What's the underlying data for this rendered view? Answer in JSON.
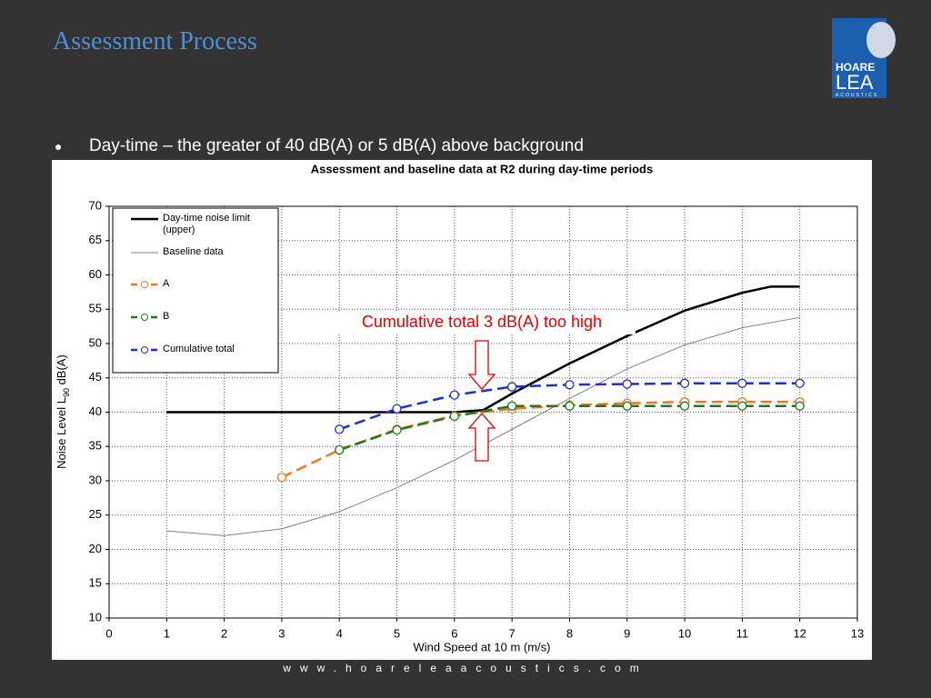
{
  "header": {
    "title": "Assessment Process"
  },
  "logo": {
    "line1": "HOARE",
    "line2": "LEA",
    "line3": "ACOUSTICS"
  },
  "bullet": "Day-time – the greater of 40 dB(A) or 5 dB(A) above background",
  "footer": "www.hoareleaacoustics.com",
  "chart_data": {
    "type": "line",
    "title": "Assessment and baseline data at R2 during day-time periods",
    "xlabel": "Wind Speed at 10 m (m/s)",
    "ylabel": [
      "Noise Level L",
      "90",
      " dB(A)"
    ],
    "annotation": "Cumulative total 3 dB(A) too high",
    "xlim": [
      0,
      13
    ],
    "xticks": [
      0,
      1,
      2,
      3,
      4,
      5,
      6,
      7,
      8,
      9,
      10,
      11,
      12,
      13
    ],
    "ylim": [
      10,
      70
    ],
    "yticks": [
      10,
      15,
      20,
      25,
      30,
      35,
      40,
      45,
      50,
      55,
      60,
      65,
      70
    ],
    "grid": true,
    "legend": "upper left",
    "series": [
      {
        "name": "Day-time noise limit (upper)",
        "color": "#000000",
        "width": 2.5,
        "dashed": false,
        "markers": false,
        "x": [
          1,
          2,
          3,
          4,
          5,
          6,
          6.5,
          7,
          8,
          9,
          10,
          11,
          11.5,
          12
        ],
        "values": [
          40,
          40,
          40,
          40,
          40,
          40,
          40.3,
          42.7,
          47.1,
          51.1,
          54.8,
          57.4,
          58.3,
          58.3
        ]
      },
      {
        "name": "Baseline data",
        "color": "#808080",
        "width": 1,
        "dashed": false,
        "markers": false,
        "x": [
          1,
          2,
          3,
          4,
          5,
          6,
          7,
          8,
          9,
          10,
          11,
          12
        ],
        "values": [
          22.7,
          22,
          23,
          25.5,
          29,
          33,
          37.5,
          42,
          46.3,
          49.8,
          52.3,
          53.8
        ]
      },
      {
        "name": "A",
        "color": "#f07820",
        "width": 2.5,
        "dashed": true,
        "markers": true,
        "x": [
          3,
          4,
          5,
          6,
          7,
          8,
          9,
          10,
          11,
          12
        ],
        "values": [
          30.5,
          34.5,
          37.5,
          39.5,
          40.5,
          41,
          41.3,
          41.5,
          41.5,
          41.5
        ]
      },
      {
        "name": "B",
        "color": "#1f7a1f",
        "width": 2.5,
        "dashed": true,
        "markers": true,
        "x": [
          4,
          5,
          6,
          7,
          8,
          9,
          10,
          11,
          12
        ],
        "values": [
          34.5,
          37.4,
          39.4,
          40.9,
          40.9,
          40.9,
          40.9,
          40.9,
          40.9
        ]
      },
      {
        "name": "Cumulative total",
        "color": "#1f2fd0",
        "width": 2.5,
        "dashed": true,
        "markers": true,
        "x": [
          4,
          5,
          6,
          7,
          8,
          9,
          10,
          11,
          12
        ],
        "values": [
          37.5,
          40.5,
          42.5,
          43.7,
          44,
          44.1,
          44.2,
          44.2,
          44.2
        ]
      }
    ]
  }
}
